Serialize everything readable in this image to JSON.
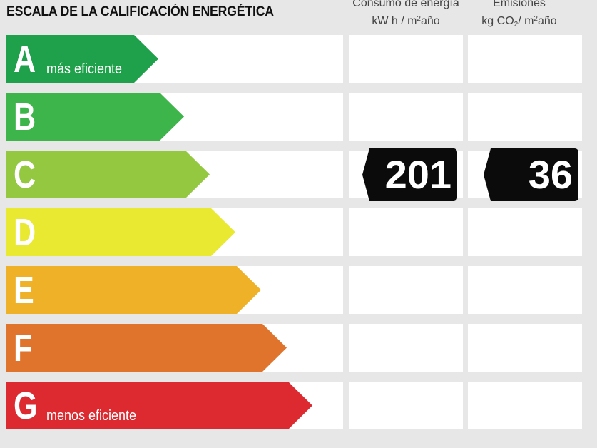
{
  "title": "ESCALA DE LA CALIFICACIÓN ENERGÉTICA",
  "columns": {
    "consumo": {
      "line1": "Consumo de energía",
      "line2_pre": "kW h / m",
      "line2_sup": "2",
      "line2_post": "año"
    },
    "emisiones": {
      "line1": "Emisiones",
      "line2_pre": "kg CO",
      "line2_sub": "2",
      "line2_mid": "/ m",
      "line2_sup": "2",
      "line2_post": "año"
    }
  },
  "classes": [
    {
      "letter": "A",
      "label": "más eficiente",
      "color": "#1fa04a"
    },
    {
      "letter": "B",
      "label": "",
      "color": "#3db54a"
    },
    {
      "letter": "C",
      "label": "",
      "color": "#94c841"
    },
    {
      "letter": "D",
      "label": "",
      "color": "#e8e930"
    },
    {
      "letter": "E",
      "label": "",
      "color": "#efb127"
    },
    {
      "letter": "F",
      "label": "",
      "color": "#e0742c"
    },
    {
      "letter": "G",
      "label": "menos eficiente",
      "color": "#dc2a30"
    }
  ],
  "rating": {
    "class": "C",
    "consumo_value": "201",
    "emisiones_value": "36"
  }
}
